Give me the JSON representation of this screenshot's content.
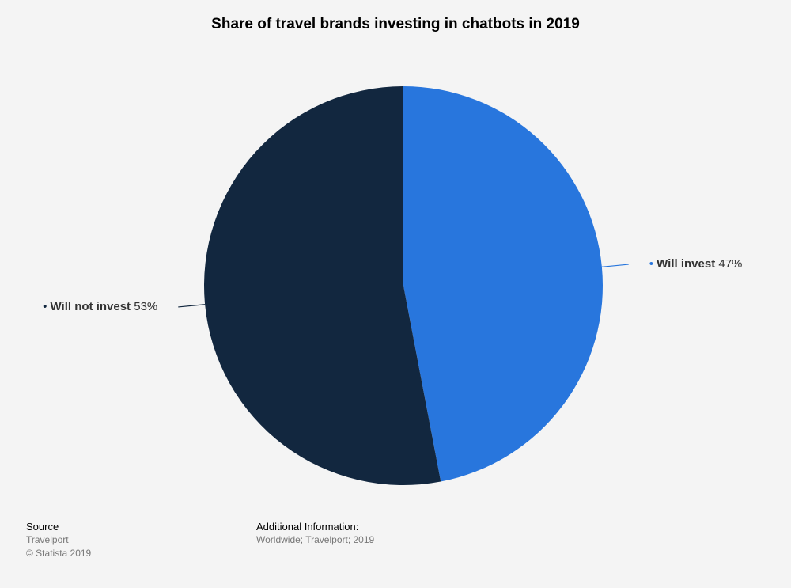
{
  "chart_data": {
    "type": "pie",
    "title": "Share of travel brands investing in chatbots in 2019",
    "slices": [
      {
        "label": "Will invest",
        "value": 47,
        "display": "47%",
        "color": "#2876dd"
      },
      {
        "label": "Will not invest",
        "value": 53,
        "display": "53%",
        "color": "#12273f"
      }
    ],
    "start": "12 o'clock",
    "direction": "clockwise",
    "legend": "none (labels placed next to slices)"
  },
  "footer": {
    "source_heading": "Source",
    "source_name": "Travelport",
    "copyright": "© Statista 2019",
    "additional_heading": "Additional Information:",
    "additional_text": "Worldwide; Travelport; 2019"
  }
}
